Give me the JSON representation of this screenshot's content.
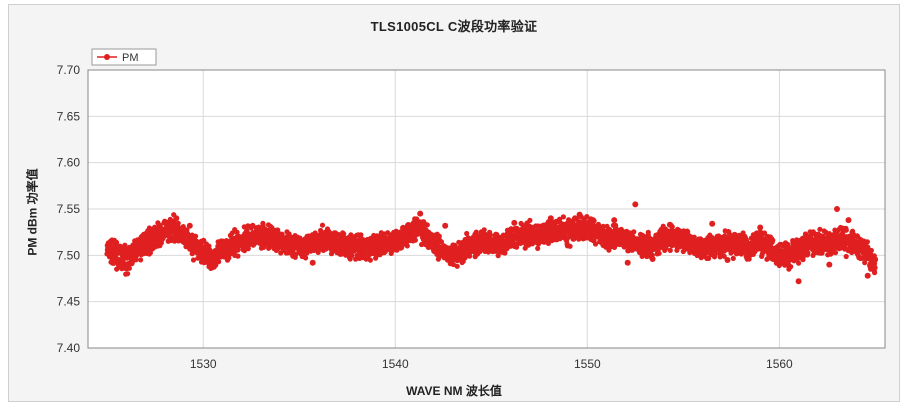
{
  "colors": {
    "series": "#e02020",
    "grid": "#d9d9d9",
    "plot_bg": "#ffffff",
    "frame_bg": "#f4f4f4"
  },
  "chart_data": {
    "type": "scatter",
    "title": "TLS1005CL  C波段功率验证",
    "xlabel": "WAVE NM 波长值",
    "ylabel": "PM dBm 功率值",
    "xlim": [
      1524.0,
      1565.5
    ],
    "ylim": [
      7.4,
      7.7
    ],
    "xticks": [
      1530,
      1540,
      1550,
      1560
    ],
    "yticks": [
      7.4,
      7.45,
      7.5,
      7.55,
      7.6,
      7.65,
      7.7
    ],
    "grid": true,
    "legend": {
      "position": "top-left",
      "entries": [
        "PM"
      ]
    },
    "series": [
      {
        "name": "PM",
        "marker": "circle",
        "x": [
          1525.0,
          1525.5,
          1526.0,
          1526.5,
          1527.0,
          1527.5,
          1528.0,
          1528.5,
          1529.0,
          1529.5,
          1530.0,
          1530.5,
          1531.0,
          1531.5,
          1532.0,
          1532.5,
          1533.0,
          1533.5,
          1534.0,
          1534.5,
          1535.0,
          1535.5,
          1536.0,
          1536.5,
          1537.0,
          1537.5,
          1538.0,
          1538.5,
          1539.0,
          1539.5,
          1540.0,
          1540.5,
          1541.0,
          1541.5,
          1542.0,
          1542.5,
          1543.0,
          1543.5,
          1544.0,
          1544.5,
          1545.0,
          1545.5,
          1546.0,
          1546.5,
          1547.0,
          1547.5,
          1548.0,
          1548.5,
          1549.0,
          1549.5,
          1550.0,
          1550.5,
          1551.0,
          1551.5,
          1552.0,
          1552.5,
          1553.0,
          1553.5,
          1554.0,
          1554.5,
          1555.0,
          1555.5,
          1556.0,
          1556.5,
          1557.0,
          1557.5,
          1558.0,
          1558.5,
          1559.0,
          1559.5,
          1560.0,
          1560.5,
          1561.0,
          1561.5,
          1562.0,
          1562.5,
          1563.0,
          1563.5,
          1564.0,
          1564.5,
          1565.0
        ],
        "y": [
          7.505,
          7.5,
          7.495,
          7.505,
          7.515,
          7.52,
          7.525,
          7.53,
          7.52,
          7.51,
          7.505,
          7.498,
          7.505,
          7.51,
          7.515,
          7.52,
          7.522,
          7.52,
          7.515,
          7.512,
          7.51,
          7.512,
          7.515,
          7.518,
          7.512,
          7.51,
          7.508,
          7.508,
          7.51,
          7.512,
          7.515,
          7.52,
          7.53,
          7.525,
          7.515,
          7.505,
          7.5,
          7.505,
          7.51,
          7.515,
          7.515,
          7.512,
          7.518,
          7.522,
          7.522,
          7.52,
          7.525,
          7.528,
          7.525,
          7.528,
          7.53,
          7.525,
          7.52,
          7.52,
          7.518,
          7.515,
          7.51,
          7.512,
          7.518,
          7.52,
          7.515,
          7.512,
          7.51,
          7.508,
          7.51,
          7.512,
          7.51,
          7.508,
          7.515,
          7.51,
          7.5,
          7.5,
          7.505,
          7.512,
          7.515,
          7.51,
          7.515,
          7.515,
          7.51,
          7.505,
          7.49
        ],
        "outliers": [
          [
            1525.2,
            7.515
          ],
          [
            1526.1,
            7.49
          ],
          [
            1528.6,
            7.54
          ],
          [
            1529.3,
            7.532
          ],
          [
            1530.4,
            7.488
          ],
          [
            1533.2,
            7.525
          ],
          [
            1535.7,
            7.492
          ],
          [
            1538.3,
            7.498
          ],
          [
            1541.3,
            7.545
          ],
          [
            1542.6,
            7.532
          ],
          [
            1543.5,
            7.494
          ],
          [
            1546.2,
            7.535
          ],
          [
            1548.1,
            7.54
          ],
          [
            1549.6,
            7.544
          ],
          [
            1550.3,
            7.538
          ],
          [
            1551.4,
            7.538
          ],
          [
            1552.1,
            7.492
          ],
          [
            1552.5,
            7.555
          ],
          [
            1553.4,
            7.496
          ],
          [
            1554.3,
            7.533
          ],
          [
            1556.5,
            7.534
          ],
          [
            1557.3,
            7.495
          ],
          [
            1559.0,
            7.53
          ],
          [
            1560.4,
            7.49
          ],
          [
            1561.0,
            7.472
          ],
          [
            1562.6,
            7.49
          ],
          [
            1563.0,
            7.55
          ],
          [
            1563.6,
            7.538
          ],
          [
            1564.6,
            7.478
          ],
          [
            1564.9,
            7.485
          ]
        ]
      }
    ]
  }
}
